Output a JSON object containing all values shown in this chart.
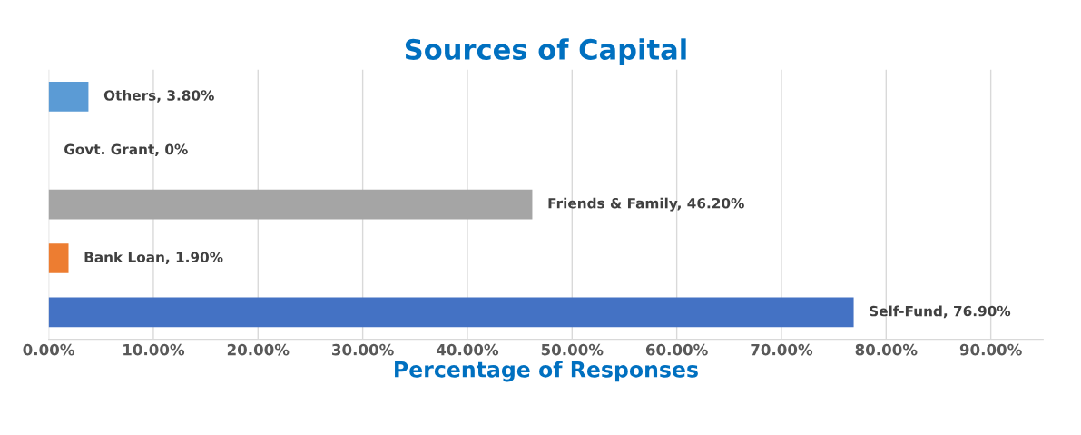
{
  "chart_data": {
    "type": "bar",
    "orientation": "horizontal",
    "title": "Sources of Capital",
    "xlabel": "Percentage of Responses",
    "categories": [
      null,
      null,
      null,
      null,
      null
    ],
    "values": [
      3.8,
      0,
      46.2,
      1.9,
      76.9
    ],
    "colors": [
      "#5b9bd5",
      "#5b9bd5",
      "#a5a5a5",
      "#ed7d31",
      "#4472c4"
    ],
    "value_labels": [
      "Others, 3.80%",
      "Govt. Grant, 0%",
      "Friends & Family, 46.20%",
      "Bank Loan, 1.90%",
      "Self-Fund, 76.90%"
    ],
    "xlim": [
      0,
      95
    ],
    "xticks": [
      {
        "value": 0,
        "label": "0.00%"
      },
      {
        "value": 10,
        "label": "10.00%"
      },
      {
        "value": 20,
        "label": "20.00%"
      },
      {
        "value": 30,
        "label": "30.00%"
      },
      {
        "value": 40,
        "label": "40.00%"
      },
      {
        "value": 50,
        "label": "50.00%"
      },
      {
        "value": 60,
        "label": "60.00%"
      },
      {
        "value": 70,
        "label": "70.00%"
      },
      {
        "value": 80,
        "label": "80.00%"
      },
      {
        "value": 90,
        "label": "90.00%"
      }
    ],
    "grid": "x",
    "tick_labels": "x"
  }
}
